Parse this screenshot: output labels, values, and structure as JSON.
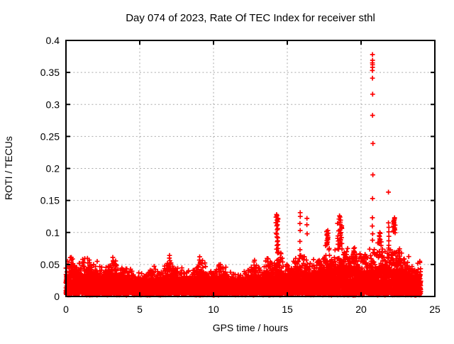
{
  "chart_data": {
    "type": "scatter",
    "title": "Day 074 of 2023, Rate Of TEC Index for receiver sthl",
    "xlabel": "GPS time / hours",
    "ylabel": "ROTI / TECUs",
    "xlim": [
      0,
      25
    ],
    "ylim": [
      0,
      0.4
    ],
    "xticks": [
      0,
      5,
      10,
      15,
      20,
      25
    ],
    "xtick_labels": [
      "0",
      "5",
      "10",
      "15",
      "20",
      "25"
    ],
    "yticks": [
      0,
      0.05,
      0.1,
      0.15,
      0.2,
      0.25,
      0.3,
      0.35,
      0.4
    ],
    "ytick_labels": [
      "0",
      "0.05",
      "0.1",
      "0.15",
      "0.2",
      "0.25",
      "0.3",
      "0.35",
      "0.4"
    ],
    "grid": true,
    "legend": "none",
    "marker": "plus",
    "colors": {
      "marker": "#ff0000",
      "grid": "#aaaaaa",
      "foreground": "#000000",
      "background": "#ffffff"
    },
    "band": {
      "t_range": [
        0,
        24.04
      ],
      "core_max": 0.028,
      "envelope": [
        [
          0,
          0.05
        ],
        [
          0.4,
          0.06
        ],
        [
          0.8,
          0.048
        ],
        [
          1.2,
          0.054
        ],
        [
          1.6,
          0.056
        ],
        [
          2.0,
          0.05
        ],
        [
          2.5,
          0.038
        ],
        [
          3.0,
          0.052
        ],
        [
          3.2,
          0.058
        ],
        [
          3.6,
          0.042
        ],
        [
          4.0,
          0.05
        ],
        [
          4.5,
          0.036
        ],
        [
          5.0,
          0.032
        ],
        [
          5.5,
          0.037
        ],
        [
          6.0,
          0.042
        ],
        [
          6.5,
          0.036
        ],
        [
          7.0,
          0.058
        ],
        [
          7.4,
          0.046
        ],
        [
          7.8,
          0.04
        ],
        [
          8.3,
          0.036
        ],
        [
          8.7,
          0.042
        ],
        [
          9.1,
          0.055
        ],
        [
          9.5,
          0.044
        ],
        [
          9.9,
          0.035
        ],
        [
          10.4,
          0.048
        ],
        [
          10.9,
          0.04
        ],
        [
          11.4,
          0.032
        ],
        [
          11.9,
          0.036
        ],
        [
          12.4,
          0.042
        ],
        [
          12.8,
          0.052
        ],
        [
          13.2,
          0.042
        ],
        [
          13.7,
          0.056
        ],
        [
          14.1,
          0.05
        ],
        [
          14.35,
          0.068
        ],
        [
          14.7,
          0.052
        ],
        [
          15.0,
          0.046
        ],
        [
          15.5,
          0.052
        ],
        [
          15.95,
          0.062
        ],
        [
          16.35,
          0.058
        ],
        [
          16.7,
          0.052
        ],
        [
          17.0,
          0.058
        ],
        [
          17.4,
          0.064
        ],
        [
          17.75,
          0.075
        ],
        [
          18.1,
          0.062
        ],
        [
          18.35,
          0.068
        ],
        [
          18.6,
          0.08
        ],
        [
          19.0,
          0.066
        ],
        [
          19.5,
          0.075
        ],
        [
          19.95,
          0.062
        ],
        [
          20.35,
          0.06
        ],
        [
          20.75,
          0.072
        ],
        [
          21.05,
          0.068
        ],
        [
          21.3,
          0.08
        ],
        [
          21.6,
          0.065
        ],
        [
          21.9,
          0.078
        ],
        [
          22.25,
          0.072
        ],
        [
          22.55,
          0.068
        ],
        [
          22.85,
          0.06
        ],
        [
          23.15,
          0.055
        ],
        [
          23.45,
          0.048
        ],
        [
          23.75,
          0.046
        ],
        [
          24.04,
          0.05
        ]
      ]
    },
    "spikes": [
      {
        "t": 0.38,
        "spread": 0.05,
        "dense": false,
        "values": [
          0.061,
          0.057,
          0.053,
          0.049
        ]
      },
      {
        "t": 1.15,
        "spread": 0.05,
        "dense": false,
        "values": [
          0.058,
          0.054
        ]
      },
      {
        "t": 1.6,
        "spread": 0.05,
        "dense": false,
        "values": [
          0.057,
          0.053
        ]
      },
      {
        "t": 3.18,
        "spread": 0.05,
        "dense": false,
        "values": [
          0.061,
          0.056
        ]
      },
      {
        "t": 7.02,
        "spread": 0.05,
        "dense": false,
        "values": [
          0.064,
          0.06,
          0.056,
          0.051
        ]
      },
      {
        "t": 9.07,
        "spread": 0.05,
        "dense": false,
        "values": [
          0.062,
          0.057,
          0.052
        ]
      },
      {
        "t": 10.45,
        "spread": 0.05,
        "dense": false,
        "values": [
          0.05,
          0.046
        ]
      },
      {
        "t": 12.75,
        "spread": 0.05,
        "dense": false,
        "values": [
          0.054,
          0.049
        ]
      },
      {
        "t": 13.68,
        "spread": 0.05,
        "dense": false,
        "values": [
          0.059,
          0.054
        ]
      },
      {
        "t": 14.3,
        "spread": 0.15,
        "dense": true,
        "values": [
          0.128,
          0.124,
          0.121,
          0.117,
          0.112,
          0.106,
          0.099,
          0.093,
          0.087,
          0.081,
          0.075,
          0.069
        ]
      },
      {
        "t": 15.88,
        "spread": 0.06,
        "dense": false,
        "values": [
          0.131,
          0.125,
          0.114,
          0.103,
          0.086,
          0.073,
          0.064
        ]
      },
      {
        "t": 16.35,
        "spread": 0.06,
        "dense": false,
        "values": [
          0.122,
          0.112,
          0.098
        ]
      },
      {
        "t": 17.72,
        "spread": 0.12,
        "dense": true,
        "values": [
          0.103,
          0.099,
          0.096,
          0.092,
          0.089,
          0.085,
          0.082
        ]
      },
      {
        "t": 18.55,
        "spread": 0.3,
        "dense": true,
        "values": [
          0.126,
          0.121,
          0.116,
          0.112,
          0.108,
          0.104,
          0.1,
          0.096,
          0.092,
          0.088,
          0.084,
          0.08,
          0.075
        ]
      },
      {
        "t": 19.5,
        "spread": 0.12,
        "dense": true,
        "values": [
          0.076,
          0.071,
          0.066,
          0.061
        ]
      },
      {
        "t": 20.78,
        "spread": 0.05,
        "dense": false,
        "values": [
          0.378,
          0.369,
          0.365,
          0.362,
          0.358,
          0.353,
          0.341,
          0.316,
          0.283,
          0.239,
          0.19,
          0.153,
          0.123,
          0.11,
          0.098,
          0.088
        ]
      },
      {
        "t": 21.25,
        "spread": 0.12,
        "dense": true,
        "values": [
          0.1,
          0.095,
          0.09,
          0.085
        ]
      },
      {
        "t": 21.88,
        "spread": 0.06,
        "dense": false,
        "values": [
          0.163,
          0.115,
          0.108,
          0.101,
          0.094,
          0.087,
          0.08
        ]
      },
      {
        "t": 22.25,
        "spread": 0.12,
        "dense": true,
        "values": [
          0.123,
          0.119,
          0.116,
          0.113,
          0.11,
          0.107,
          0.104,
          0.101
        ]
      },
      {
        "t": 22.6,
        "spread": 0.08,
        "dense": false,
        "values": [
          0.06,
          0.055
        ]
      }
    ]
  }
}
